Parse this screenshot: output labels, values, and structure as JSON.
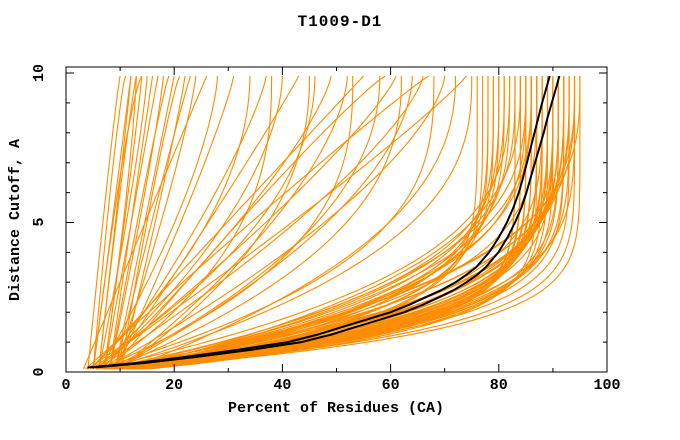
{
  "chart_data": {
    "type": "line",
    "title": "T1009-D1",
    "xlabel": "Percent of Residues (CA)",
    "ylabel": "Distance Cutoff, A",
    "xlim": [
      0,
      100
    ],
    "ylim": [
      0,
      10.2
    ],
    "x_major_ticks": [
      0,
      20,
      40,
      60,
      80,
      100
    ],
    "x_minor_ticks": [
      10,
      30,
      50,
      70,
      90
    ],
    "y_major_ticks": [
      0,
      5,
      10
    ],
    "y_minor_ticks": [
      1,
      2,
      3,
      4,
      6,
      7,
      8,
      9
    ],
    "grid": false,
    "legend": "none",
    "frame": "full-box-inward-ticks",
    "colors": {
      "model_lines": "#ff8c00",
      "highlight_lines": "#000000",
      "frame": "#000000",
      "background": "#ffffff"
    },
    "cutoff_max_drawn": 9.9,
    "series": [
      {
        "name": "highlighted-model-1",
        "color": "#000000",
        "points_cutoff_percent": [
          [
            0.15,
            4
          ],
          [
            0.3,
            13
          ],
          [
            0.5,
            22
          ],
          [
            0.75,
            32
          ],
          [
            1.0,
            41
          ],
          [
            1.25,
            46.5
          ],
          [
            1.5,
            51
          ],
          [
            1.75,
            55.5
          ],
          [
            2.0,
            60
          ],
          [
            2.25,
            63.5
          ],
          [
            2.5,
            66.5
          ],
          [
            2.75,
            69.5
          ],
          [
            3.0,
            72
          ],
          [
            3.25,
            74
          ],
          [
            3.5,
            75.8
          ],
          [
            4.0,
            78.2
          ],
          [
            4.5,
            80
          ],
          [
            5.0,
            81.5
          ],
          [
            5.5,
            82.7
          ],
          [
            6.0,
            83.7
          ],
          [
            6.5,
            84.5
          ],
          [
            7.0,
            85.2
          ],
          [
            7.5,
            85.9
          ],
          [
            8.0,
            86.6
          ],
          [
            8.5,
            87.3
          ],
          [
            9.0,
            88
          ],
          [
            9.5,
            88.8
          ],
          [
            9.9,
            89.4
          ]
        ]
      },
      {
        "name": "highlighted-model-2",
        "color": "#000000",
        "points_cutoff_percent": [
          [
            0.15,
            5
          ],
          [
            0.3,
            14.5
          ],
          [
            0.5,
            24
          ],
          [
            0.75,
            34.5
          ],
          [
            1.0,
            43.5
          ],
          [
            1.25,
            49
          ],
          [
            1.5,
            53.5
          ],
          [
            1.75,
            58
          ],
          [
            2.0,
            62.5
          ],
          [
            2.25,
            66
          ],
          [
            2.5,
            69
          ],
          [
            2.75,
            71.8
          ],
          [
            3.0,
            74
          ],
          [
            3.25,
            76
          ],
          [
            3.5,
            77.6
          ],
          [
            4.0,
            79.9
          ],
          [
            4.5,
            81.6
          ],
          [
            5.0,
            83
          ],
          [
            5.5,
            84.2
          ],
          [
            6.0,
            85.1
          ],
          [
            6.5,
            85.9
          ],
          [
            7.0,
            86.7
          ],
          [
            7.5,
            87.5
          ],
          [
            8.0,
            88.3
          ],
          [
            8.5,
            89
          ],
          [
            9.0,
            89.8
          ],
          [
            9.5,
            90.6
          ],
          [
            9.9,
            91.2
          ]
        ]
      }
    ],
    "model_curve_params_format": "[percent_at_cutoff_0, percent_at_cutoff_max, shape_exponent]; percent(c) = p1 - (p1-p0)*(1-c/9.9)^k",
    "model_curve_params": [
      [
        3,
        95,
        8
      ],
      [
        4,
        94,
        7.5
      ],
      [
        2,
        93,
        7
      ],
      [
        5,
        92,
        6.5
      ],
      [
        3,
        91,
        6
      ],
      [
        6,
        90,
        5.5
      ],
      [
        4,
        89,
        5
      ],
      [
        7,
        88,
        4.5
      ],
      [
        5,
        87,
        4
      ],
      [
        8,
        86,
        3.5
      ],
      [
        6,
        85,
        3.2
      ],
      [
        9,
        84,
        3
      ],
      [
        7,
        83,
        3.4
      ],
      [
        10,
        82,
        3.8
      ],
      [
        8,
        81,
        4.2
      ],
      [
        2,
        80,
        4.6
      ],
      [
        9,
        79,
        5
      ],
      [
        3,
        78,
        5.4
      ],
      [
        10,
        77,
        5.8
      ],
      [
        4,
        76,
        6.2
      ],
      [
        5,
        94,
        3.3
      ],
      [
        6,
        93,
        3.7
      ],
      [
        7,
        92,
        4.1
      ],
      [
        8,
        91,
        4.5
      ],
      [
        9,
        90,
        4.9
      ],
      [
        10,
        89,
        5.3
      ],
      [
        2,
        88,
        5.7
      ],
      [
        3,
        87,
        6.1
      ],
      [
        4,
        86,
        6.5
      ],
      [
        5,
        85,
        6.9
      ],
      [
        6,
        84,
        7.3
      ],
      [
        7,
        83,
        7.7
      ],
      [
        8,
        95,
        3.1
      ],
      [
        9,
        94,
        3.5
      ],
      [
        10,
        93,
        3.9
      ],
      [
        2,
        92,
        4.3
      ],
      [
        3,
        91,
        4.7
      ],
      [
        4,
        90,
        5.1
      ],
      [
        5,
        89,
        5.5
      ],
      [
        6,
        88,
        5.9
      ],
      [
        7,
        87,
        6.3
      ],
      [
        8,
        86,
        6.7
      ],
      [
        9,
        85,
        7.1
      ],
      [
        10,
        84,
        7.5
      ],
      [
        2,
        83,
        7.9
      ],
      [
        3,
        82,
        3.2
      ],
      [
        4,
        81,
        3.6
      ],
      [
        5,
        80,
        4
      ],
      [
        6,
        79,
        4.4
      ],
      [
        7,
        78,
        4.8
      ],
      [
        8,
        94,
        5.2
      ],
      [
        9,
        93,
        5.6
      ],
      [
        10,
        92,
        6
      ],
      [
        2,
        91,
        6.4
      ],
      [
        3,
        90,
        6.8
      ],
      [
        4,
        89,
        7.2
      ],
      [
        5,
        88,
        7.6
      ],
      [
        6,
        87,
        8
      ],
      [
        7,
        86,
        3.3
      ],
      [
        8,
        85,
        3.7
      ],
      [
        9,
        92,
        4.1
      ],
      [
        10,
        90,
        4.5
      ],
      [
        4,
        74,
        1.1
      ],
      [
        6,
        70,
        1.5
      ],
      [
        3,
        67,
        0.95
      ],
      [
        8,
        64,
        1.8
      ],
      [
        5,
        61,
        1.2
      ],
      [
        7,
        58,
        2.1
      ],
      [
        4,
        55,
        1.0
      ],
      [
        9,
        52,
        1.6
      ],
      [
        6,
        49,
        1.3
      ],
      [
        3,
        46,
        2.0
      ],
      [
        8,
        43,
        1.05
      ],
      [
        5,
        40,
        1.7
      ],
      [
        7,
        37,
        1.25
      ],
      [
        4,
        34,
        1.9
      ],
      [
        9,
        31,
        1.15
      ],
      [
        6,
        28,
        1.45
      ],
      [
        3,
        26,
        1.0
      ],
      [
        10,
        72,
        2.3
      ],
      [
        5,
        66,
        1.35
      ],
      [
        8,
        59,
        0.9
      ],
      [
        6,
        75,
        2.6
      ],
      [
        4,
        68,
        2.9
      ],
      [
        7,
        62,
        2.4
      ],
      [
        5,
        53,
        2.7
      ],
      [
        9,
        45,
        2.2
      ],
      [
        6,
        38,
        2.5
      ],
      [
        5,
        12,
        1.0
      ],
      [
        6,
        13,
        0.9
      ],
      [
        7,
        14,
        1.1
      ],
      [
        5,
        11,
        0.8
      ],
      [
        6,
        15,
        1.2
      ],
      [
        8,
        16,
        1.0
      ],
      [
        4,
        10,
        0.9
      ],
      [
        7,
        13,
        1.3
      ],
      [
        5,
        14,
        0.75
      ],
      [
        6,
        12,
        1.05
      ],
      [
        9,
        20,
        1.0
      ],
      [
        10,
        22,
        1.1
      ],
      [
        8,
        19,
        0.9
      ],
      [
        9,
        24,
        1.2
      ],
      [
        10,
        21,
        0.85
      ],
      [
        7,
        17,
        1.0
      ],
      [
        8,
        18,
        1.15
      ],
      [
        9,
        23,
        0.95
      ]
    ]
  }
}
